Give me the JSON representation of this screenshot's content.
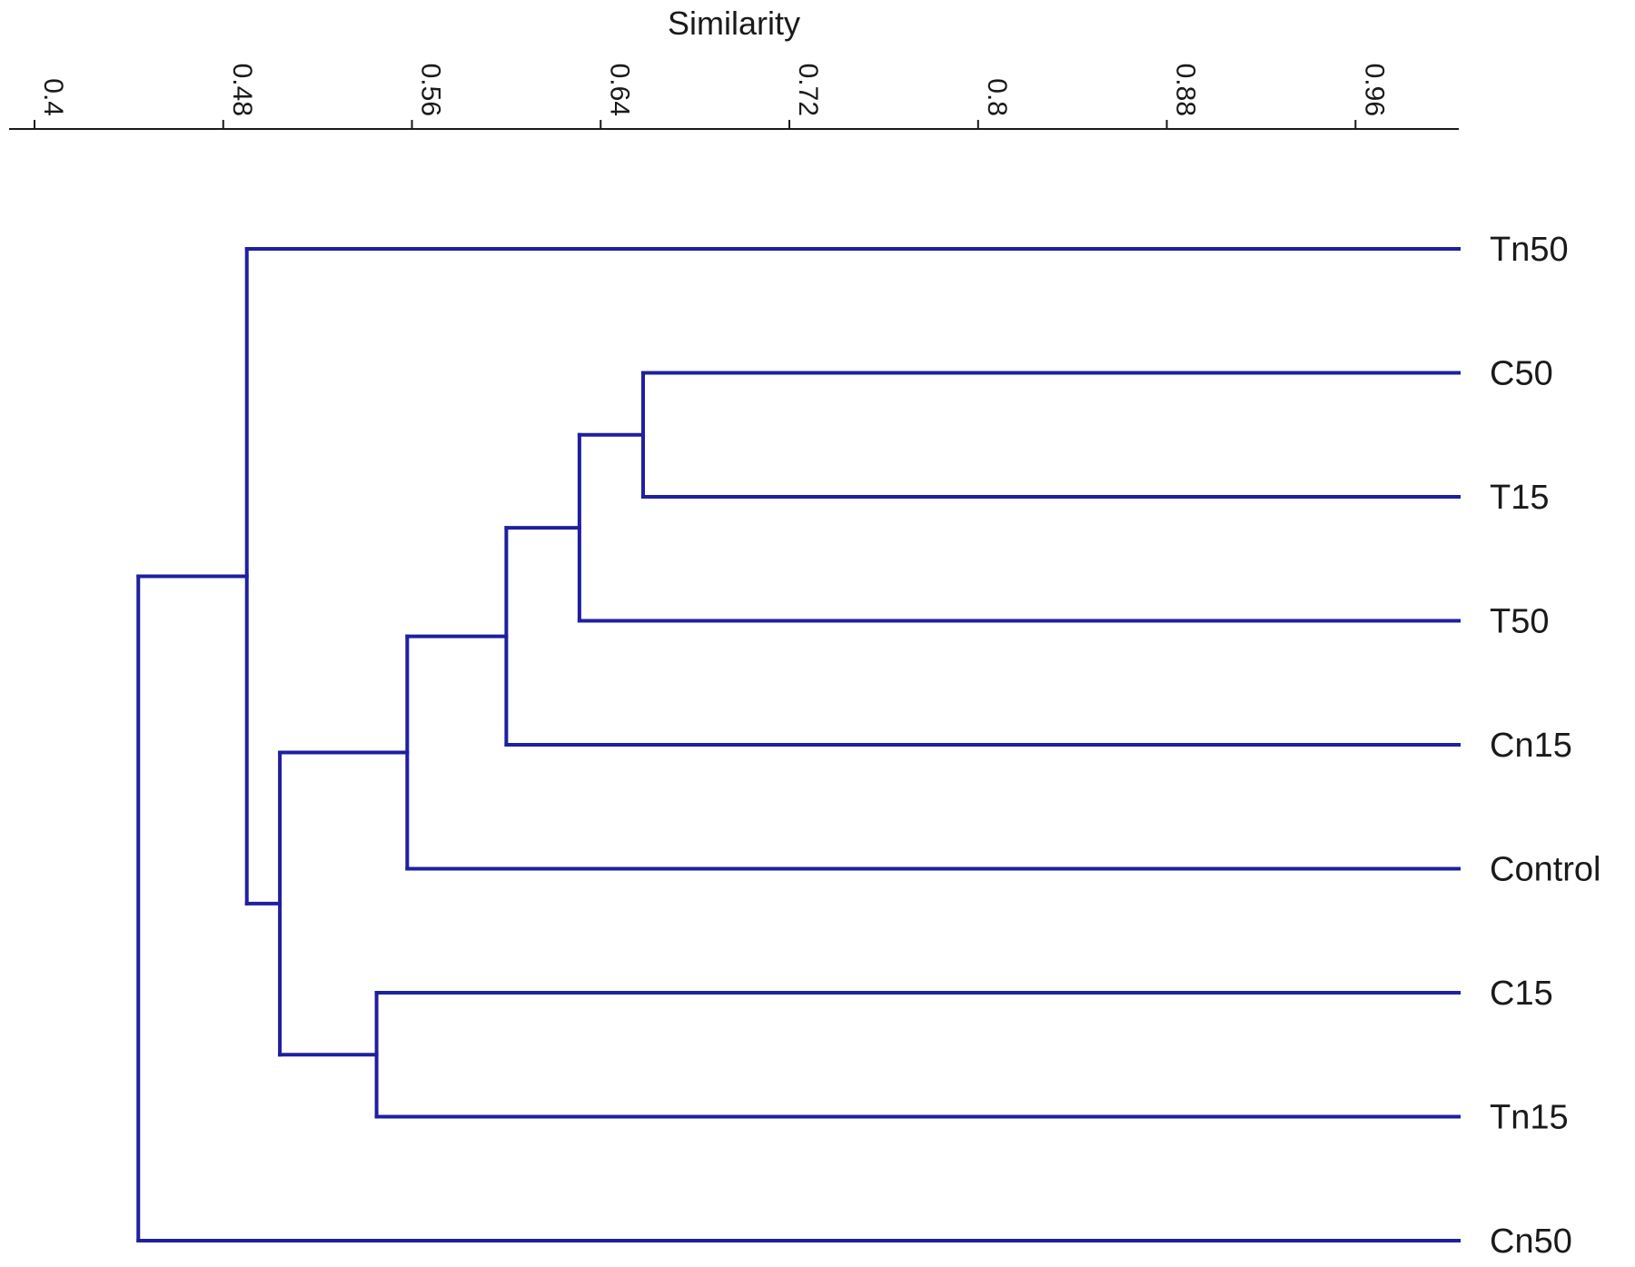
{
  "chart_data": {
    "type": "dendrogram",
    "title": "",
    "xlabel": "Similarity",
    "xlim": [
      0.4,
      1.0
    ],
    "ticks": [
      {
        "value": 0.4,
        "label": "0.4"
      },
      {
        "value": 0.48,
        "label": "0.48"
      },
      {
        "value": 0.56,
        "label": "0.56"
      },
      {
        "value": 0.64,
        "label": "0.64"
      },
      {
        "value": 0.72,
        "label": "0.72"
      },
      {
        "value": 0.8,
        "label": "0.8"
      },
      {
        "value": 0.88,
        "label": "0.88"
      },
      {
        "value": 0.96,
        "label": "0.96"
      }
    ],
    "leaves": [
      "Tn50",
      "C50",
      "T15",
      "T50",
      "Cn15",
      "Control",
      "C15",
      "Tn15",
      "Cn50"
    ],
    "merges": [
      {
        "id": "m1",
        "left": "C50",
        "right": "T15",
        "similarity": 0.658
      },
      {
        "id": "m2",
        "left": "m1",
        "right": "T50",
        "similarity": 0.631
      },
      {
        "id": "m3",
        "left": "m2",
        "right": "Cn15",
        "similarity": 0.6
      },
      {
        "id": "m4",
        "left": "m3",
        "right": "Control",
        "similarity": 0.558
      },
      {
        "id": "m5",
        "left": "C15",
        "right": "Tn15",
        "similarity": 0.545
      },
      {
        "id": "m6",
        "left": "m4",
        "right": "m5",
        "similarity": 0.504
      },
      {
        "id": "m7",
        "left": "Tn50",
        "right": "m6",
        "similarity": 0.49
      },
      {
        "id": "m8",
        "left": "m7",
        "right": "Cn50",
        "similarity": 0.444
      }
    ],
    "line_color": "#1f1fa0",
    "axis_color": "#1a1a1a",
    "grid": false
  }
}
